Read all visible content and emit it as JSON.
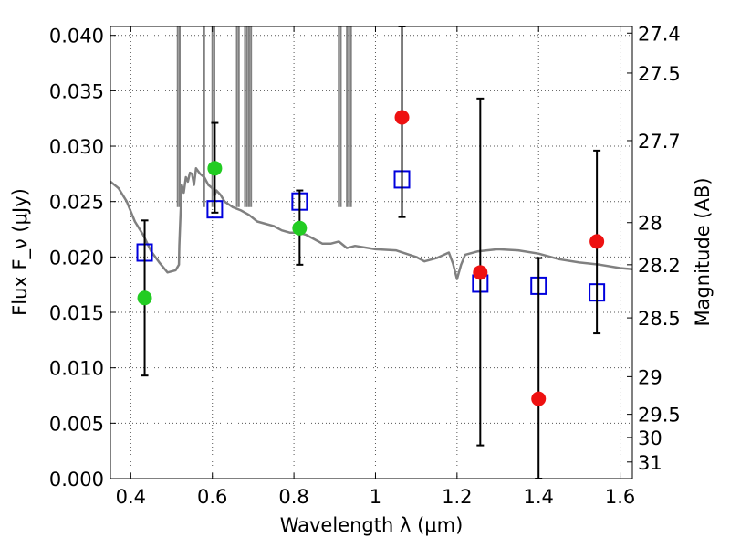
{
  "chart_data": {
    "type": "scatter",
    "title": "",
    "xlabel": "Wavelength λ (μm)",
    "ylabel": "Flux F_ν (μJy)",
    "y2label": "Magnitude (AB)",
    "xlim": [
      0.35,
      1.63
    ],
    "ylim": [
      0.0,
      0.0408
    ],
    "grid": true,
    "x_ticks": [
      0.4,
      0.6,
      0.8,
      1.0,
      1.2,
      1.4,
      1.6
    ],
    "x_tick_labels": [
      "0.4",
      "0.6",
      "0.8",
      "1",
      "1.2",
      "1.4",
      "1.6"
    ],
    "y_ticks": [
      0.0,
      0.005,
      0.01,
      0.015,
      0.02,
      0.025,
      0.03,
      0.035,
      0.04
    ],
    "y_tick_labels": [
      "0.000",
      "0.005",
      "0.010",
      "0.015",
      "0.020",
      "0.025",
      "0.030",
      "0.035",
      "0.040"
    ],
    "y2_ticks": [
      {
        "label": "27.4",
        "flux": 0.0402
      },
      {
        "label": "27.5",
        "flux": 0.0366
      },
      {
        "label": "27.7",
        "flux": 0.0305
      },
      {
        "label": "28",
        "flux": 0.0231
      },
      {
        "label": "28.2",
        "flux": 0.0193
      },
      {
        "label": "28.5",
        "flux": 0.0145
      },
      {
        "label": "29",
        "flux": 0.0092
      },
      {
        "label": "29.5",
        "flux": 0.0058
      },
      {
        "label": "30",
        "flux": 0.0037
      },
      {
        "label": "31",
        "flux": 0.0015
      }
    ],
    "series": [
      {
        "kind": "model_sed",
        "color": "#808080",
        "x": [
          0.35,
          0.37,
          0.39,
          0.41,
          0.43,
          0.45,
          0.47,
          0.49,
          0.51,
          0.518,
          0.519,
          0.522,
          0.525,
          0.53,
          0.535,
          0.54,
          0.545,
          0.55,
          0.555,
          0.56,
          0.57,
          0.58,
          0.59,
          0.6,
          0.605,
          0.61,
          0.62,
          0.63,
          0.65,
          0.67,
          0.69,
          0.71,
          0.73,
          0.75,
          0.77,
          0.79,
          0.81,
          0.83,
          0.85,
          0.87,
          0.89,
          0.91,
          0.93,
          0.95,
          1.0,
          1.05,
          1.1,
          1.12,
          1.15,
          1.18,
          1.19,
          1.2,
          1.21,
          1.22,
          1.25,
          1.3,
          1.35,
          1.4,
          1.45,
          1.5,
          1.55,
          1.6,
          1.63
        ],
        "y": [
          0.0268,
          0.0262,
          0.025,
          0.0232,
          0.022,
          0.0205,
          0.0195,
          0.0186,
          0.0188,
          0.0193,
          0.021,
          0.024,
          0.0265,
          0.0258,
          0.0272,
          0.0268,
          0.0276,
          0.0275,
          0.0265,
          0.028,
          0.0275,
          0.0272,
          0.0265,
          0.0262,
          0.0255,
          0.026,
          0.0256,
          0.025,
          0.0245,
          0.0242,
          0.0238,
          0.0232,
          0.023,
          0.0228,
          0.0224,
          0.0222,
          0.0222,
          0.022,
          0.0216,
          0.0212,
          0.0212,
          0.0214,
          0.0208,
          0.021,
          0.0207,
          0.0206,
          0.02,
          0.0196,
          0.0199,
          0.0204,
          0.0194,
          0.018,
          0.0193,
          0.0202,
          0.0205,
          0.0207,
          0.0206,
          0.0203,
          0.0198,
          0.0195,
          0.0193,
          0.019,
          0.0189
        ]
      },
      {
        "kind": "emission_spikes",
        "color": "#808080",
        "x": [
          0.515,
          0.52,
          0.58,
          0.6,
          0.605,
          0.66,
          0.665,
          0.68,
          0.685,
          0.69,
          0.695,
          0.91,
          0.915,
          0.93,
          0.935,
          0.94
        ]
      },
      {
        "kind": "model_points",
        "color": "#0000dd",
        "marker": "open-square",
        "x": [
          0.434,
          0.606,
          0.814,
          1.065,
          1.257,
          1.4,
          1.543
        ],
        "y": [
          0.0204,
          0.0243,
          0.025,
          0.027,
          0.0176,
          0.0174,
          0.0168
        ]
      },
      {
        "kind": "observed",
        "color": "#22cc22",
        "marker": "circle",
        "x": [
          0.434,
          0.606,
          0.814
        ],
        "y": [
          0.0163,
          0.028,
          0.0226
        ],
        "yerr_low": [
          0.0093,
          0.024,
          0.0193
        ],
        "yerr_high": [
          0.0233,
          0.0321,
          0.026
        ]
      },
      {
        "kind": "observed",
        "color": "#ee1111",
        "marker": "circle",
        "x": [
          1.065,
          1.257,
          1.4,
          1.543
        ],
        "y": [
          0.0326,
          0.0186,
          0.0072,
          0.0214
        ],
        "yerr_low": [
          0.0236,
          0.003,
          0.0,
          0.0131
        ],
        "yerr_high": [
          0.0408,
          0.0343,
          0.0199,
          0.0296
        ]
      }
    ]
  }
}
